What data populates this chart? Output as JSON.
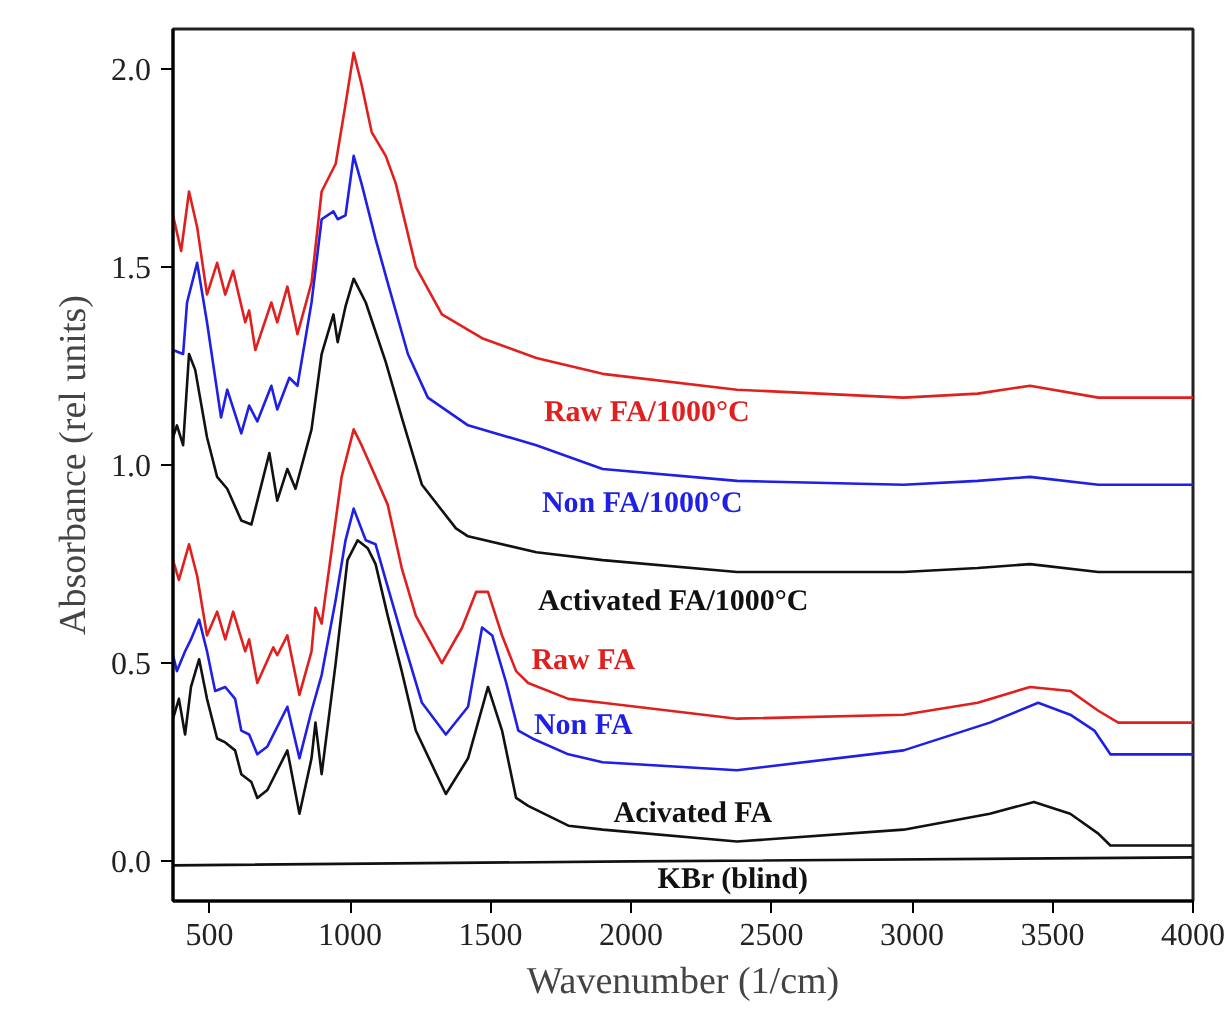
{
  "chart_data": {
    "type": "line",
    "xlabel": "Wavenumber (1/cm)",
    "ylabel": "Absorbance (rel units)",
    "xlim": [
      370,
      4000
    ],
    "ylim": [
      -0.1,
      2.1
    ],
    "xticks": [
      500,
      1000,
      1500,
      2000,
      2500,
      3000,
      3500,
      4000
    ],
    "yticks": [
      {
        "value": 0,
        "label": "0.0"
      },
      {
        "value": 0.5,
        "label": "0.5"
      },
      {
        "value": 1,
        "label": "1.0"
      },
      {
        "value": 1.5,
        "label": "1.5"
      },
      {
        "value": 2,
        "label": "2.0"
      }
    ],
    "grid": false,
    "line_style": "solid",
    "series": [
      {
        "name": "Raw FA/1000°C",
        "color": "#e0201e",
        "x": [
          370,
          399,
          427,
          456,
          491,
          527,
          556,
          584,
          627,
          641,
          663,
          720,
          741,
          777,
          813,
          863,
          899,
          949,
          984,
          1013,
          1041,
          1077,
          1127,
          1163,
          1234,
          1327,
          1470,
          1663,
          1899,
          2377,
          2970,
          3234,
          3420,
          3663,
          4000
        ],
        "values": [
          1.63,
          1.54,
          1.69,
          1.6,
          1.43,
          1.51,
          1.43,
          1.49,
          1.36,
          1.39,
          1.29,
          1.41,
          1.36,
          1.45,
          1.33,
          1.46,
          1.69,
          1.76,
          1.91,
          2.04,
          1.96,
          1.84,
          1.78,
          1.71,
          1.5,
          1.38,
          1.32,
          1.27,
          1.23,
          1.19,
          1.17,
          1.18,
          1.2,
          1.17,
          1.17
        ]
      },
      {
        "name": "Non FA/1000°C",
        "color": "#1f1fe6",
        "x": [
          370,
          406,
          420,
          456,
          491,
          541,
          563,
          613,
          641,
          670,
          720,
          741,
          784,
          813,
          863,
          899,
          941,
          956,
          984,
          1013,
          1041,
          1091,
          1134,
          1206,
          1277,
          1420,
          1663,
          1899,
          2377,
          2970,
          3234,
          3420,
          3663,
          4000
        ],
        "values": [
          1.29,
          1.28,
          1.41,
          1.51,
          1.36,
          1.12,
          1.19,
          1.08,
          1.15,
          1.11,
          1.2,
          1.14,
          1.22,
          1.2,
          1.41,
          1.62,
          1.64,
          1.62,
          1.63,
          1.78,
          1.71,
          1.57,
          1.46,
          1.28,
          1.17,
          1.1,
          1.05,
          0.99,
          0.96,
          0.95,
          0.96,
          0.97,
          0.95,
          0.95
        ]
      },
      {
        "name": "Activated FA/1000°C",
        "color": "#111111",
        "x": [
          370,
          384,
          406,
          427,
          449,
          491,
          527,
          563,
          613,
          649,
          713,
          741,
          777,
          806,
          863,
          899,
          941,
          956,
          984,
          1013,
          1056,
          1127,
          1184,
          1256,
          1377,
          1420,
          1663,
          1899,
          2377,
          2970,
          3234,
          3420,
          3663,
          4000
        ],
        "values": [
          1.07,
          1.1,
          1.05,
          1.28,
          1.24,
          1.07,
          0.97,
          0.94,
          0.86,
          0.85,
          1.03,
          0.91,
          0.99,
          0.94,
          1.09,
          1.28,
          1.38,
          1.31,
          1.4,
          1.47,
          1.41,
          1.26,
          1.12,
          0.95,
          0.84,
          0.82,
          0.78,
          0.76,
          0.73,
          0.73,
          0.74,
          0.75,
          0.73,
          0.73
        ]
      },
      {
        "name": "Raw FA",
        "color": "#e0201e",
        "x": [
          370,
          391,
          427,
          456,
          491,
          527,
          556,
          584,
          627,
          641,
          670,
          727,
          741,
          777,
          820,
          863,
          877,
          899,
          970,
          1013,
          1041,
          1091,
          1134,
          1184,
          1234,
          1327,
          1399,
          1449,
          1491,
          1541,
          1591,
          1634,
          1777,
          1899,
          2377,
          2970,
          3234,
          3420,
          3563,
          3663,
          3734,
          4000
        ],
        "values": [
          0.76,
          0.71,
          0.8,
          0.72,
          0.57,
          0.63,
          0.56,
          0.63,
          0.53,
          0.56,
          0.45,
          0.54,
          0.52,
          0.57,
          0.42,
          0.53,
          0.64,
          0.6,
          0.97,
          1.09,
          1.05,
          0.97,
          0.9,
          0.74,
          0.62,
          0.5,
          0.59,
          0.68,
          0.68,
          0.57,
          0.48,
          0.45,
          0.41,
          0.4,
          0.36,
          0.37,
          0.4,
          0.44,
          0.43,
          0.38,
          0.35,
          0.35
        ]
      },
      {
        "name": "Non FA",
        "color": "#1f1fe6",
        "x": [
          370,
          384,
          413,
          434,
          463,
          491,
          520,
          556,
          591,
          613,
          641,
          670,
          706,
          777,
          820,
          863,
          899,
          949,
          984,
          1013,
          1056,
          1091,
          1127,
          1184,
          1256,
          1341,
          1420,
          1470,
          1506,
          1556,
          1599,
          1649,
          1777,
          1899,
          2377,
          2970,
          3277,
          3449,
          3563,
          3649,
          3706,
          4000
        ],
        "values": [
          0.52,
          0.48,
          0.53,
          0.56,
          0.61,
          0.53,
          0.43,
          0.44,
          0.41,
          0.33,
          0.32,
          0.27,
          0.29,
          0.39,
          0.26,
          0.38,
          0.47,
          0.66,
          0.81,
          0.89,
          0.81,
          0.8,
          0.71,
          0.57,
          0.4,
          0.32,
          0.39,
          0.59,
          0.57,
          0.45,
          0.33,
          0.31,
          0.27,
          0.25,
          0.23,
          0.28,
          0.35,
          0.4,
          0.37,
          0.33,
          0.27,
          0.27
        ]
      },
      {
        "name": "Acivated FA",
        "color": "#111111",
        "x": [
          370,
          391,
          413,
          434,
          463,
          491,
          527,
          556,
          591,
          613,
          649,
          670,
          706,
          777,
          820,
          863,
          877,
          899,
          949,
          991,
          1027,
          1063,
          1091,
          1134,
          1184,
          1234,
          1341,
          1420,
          1491,
          1541,
          1591,
          1634,
          1777,
          1899,
          2377,
          2970,
          3277,
          3434,
          3563,
          3663,
          3706,
          4000
        ],
        "values": [
          0.36,
          0.41,
          0.32,
          0.44,
          0.51,
          0.41,
          0.31,
          0.3,
          0.28,
          0.22,
          0.2,
          0.16,
          0.18,
          0.28,
          0.12,
          0.26,
          0.35,
          0.22,
          0.5,
          0.76,
          0.81,
          0.79,
          0.75,
          0.62,
          0.48,
          0.33,
          0.17,
          0.26,
          0.44,
          0.33,
          0.16,
          0.14,
          0.09,
          0.08,
          0.05,
          0.08,
          0.12,
          0.15,
          0.12,
          0.07,
          0.04,
          0.04
        ]
      },
      {
        "name": "KBr (blind)",
        "color": "#111111",
        "x": [
          370,
          2000,
          4000
        ],
        "values": [
          -0.01,
          0.0,
          0.01
        ]
      }
    ]
  }
}
